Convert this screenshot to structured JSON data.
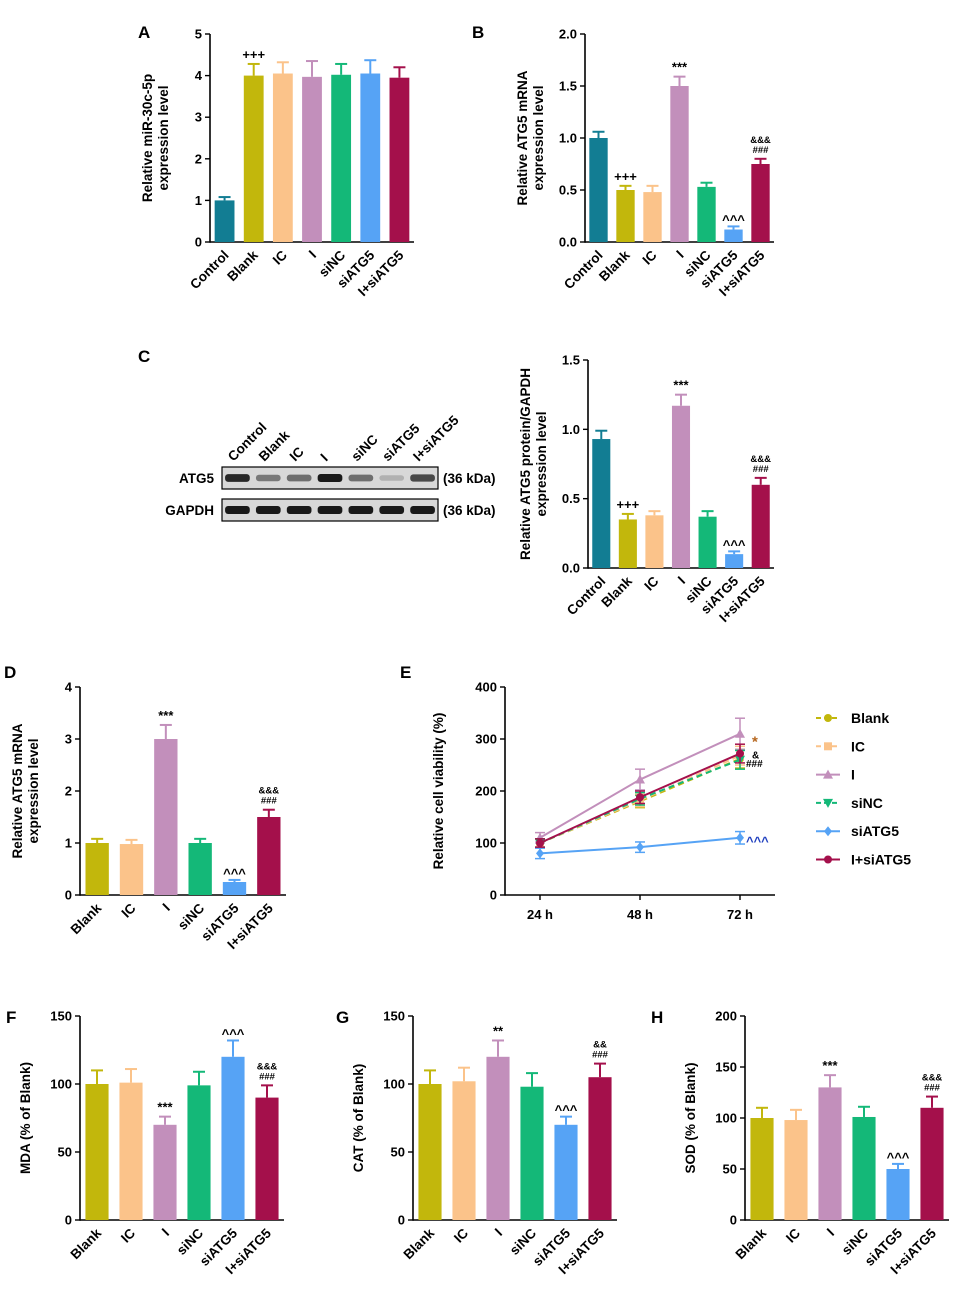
{
  "colors": {
    "Control": "#127d93",
    "Blank": "#c2b70c",
    "IC": "#fbc38a",
    "I": "#c28fbb",
    "siNC": "#14b878",
    "siATG5": "#56a3f5",
    "I+siATG5": "#a4104b"
  },
  "blot": {
    "lanes": [
      "Control",
      "Blank",
      "IC",
      "I",
      "siNC",
      "siATG5",
      "I+siATG5"
    ],
    "rows": [
      {
        "label": "ATG5",
        "size": "(36 kDa)"
      },
      {
        "label": "GAPDH",
        "size": "(36 kDa)"
      }
    ],
    "atg5_band_strength": [
      0.92,
      0.5,
      0.55,
      1.0,
      0.55,
      0.2,
      0.75
    ]
  },
  "chart_data": [
    {
      "panel": "A",
      "type": "bar",
      "ylabel": [
        "Relative miR-30c-5p",
        "expression level"
      ],
      "categories": [
        "Control",
        "Blank",
        "IC",
        "I",
        "siNC",
        "siATG5",
        "I+siATG5"
      ],
      "values": [
        1.0,
        4.0,
        4.05,
        3.97,
        4.02,
        4.05,
        3.95
      ],
      "errors": [
        0.08,
        0.28,
        0.27,
        0.38,
        0.26,
        0.32,
        0.25
      ],
      "ylim": [
        0,
        5
      ],
      "yticks": [
        "0",
        "1",
        "2",
        "3",
        "4",
        "5"
      ],
      "annotations": [
        {
          "index": 1,
          "lines": [
            "+++"
          ],
          "small": false
        }
      ]
    },
    {
      "panel": "B",
      "type": "bar",
      "ylabel": [
        "Relative ATG5 mRNA",
        "expression level"
      ],
      "categories": [
        "Control",
        "Blank",
        "IC",
        "I",
        "siNC",
        "siATG5",
        "I+siATG5"
      ],
      "values": [
        1.0,
        0.5,
        0.48,
        1.5,
        0.53,
        0.12,
        0.75
      ],
      "errors": [
        0.06,
        0.04,
        0.06,
        0.09,
        0.04,
        0.03,
        0.05
      ],
      "ylim": [
        0,
        2.0
      ],
      "yticks": [
        "0.0",
        "0.5",
        "1.0",
        "1.5",
        "2.0"
      ],
      "annotations": [
        {
          "index": 1,
          "lines": [
            "+++"
          ],
          "small": false
        },
        {
          "index": 3,
          "lines": [
            "***"
          ],
          "small": false
        },
        {
          "index": 5,
          "lines": [
            "^^^"
          ],
          "small": false
        },
        {
          "index": 6,
          "lines": [
            "&&&",
            "###"
          ],
          "small": true
        }
      ]
    },
    {
      "panel": "C",
      "type": "bar",
      "ylabel": [
        "Relative ATG5 protein/GAPDH",
        "expression level"
      ],
      "categories": [
        "Control",
        "Blank",
        "IC",
        "I",
        "siNC",
        "siATG5",
        "I+siATG5"
      ],
      "values": [
        0.93,
        0.35,
        0.38,
        1.17,
        0.37,
        0.1,
        0.6
      ],
      "errors": [
        0.06,
        0.04,
        0.03,
        0.08,
        0.04,
        0.02,
        0.05
      ],
      "ylim": [
        0,
        1.5
      ],
      "yticks": [
        "0.0",
        "0.5",
        "1.0",
        "1.5"
      ],
      "annotations": [
        {
          "index": 1,
          "lines": [
            "+++"
          ],
          "small": false
        },
        {
          "index": 3,
          "lines": [
            "***"
          ],
          "small": false
        },
        {
          "index": 5,
          "lines": [
            "^^^"
          ],
          "small": false
        },
        {
          "index": 6,
          "lines": [
            "&&&",
            "###"
          ],
          "small": true
        }
      ]
    },
    {
      "panel": "D",
      "type": "bar",
      "ylabel": [
        "Relative ATG5 mRNA",
        "expression level"
      ],
      "categories": [
        "Blank",
        "IC",
        "I",
        "siNC",
        "siATG5",
        "I+siATG5"
      ],
      "values": [
        1.0,
        0.98,
        3.0,
        1.0,
        0.25,
        1.5
      ],
      "errors": [
        0.08,
        0.08,
        0.27,
        0.08,
        0.04,
        0.14
      ],
      "ylim": [
        0,
        4
      ],
      "yticks": [
        "0",
        "1",
        "2",
        "3",
        "4"
      ],
      "annotations": [
        {
          "index": 2,
          "lines": [
            "***"
          ],
          "small": false
        },
        {
          "index": 4,
          "lines": [
            "^^^"
          ],
          "small": false
        },
        {
          "index": 5,
          "lines": [
            "&&&",
            "###"
          ],
          "small": true
        }
      ]
    },
    {
      "panel": "E",
      "type": "line",
      "ylabel": [
        "Relative cell viability (%)"
      ],
      "x": [
        "24 h",
        "48 h",
        "72 h"
      ],
      "ylim": [
        0,
        400
      ],
      "yticks": [
        "0",
        "100",
        "200",
        "300",
        "400"
      ],
      "series": [
        {
          "name": "Blank",
          "values": [
            100,
            180,
            262
          ],
          "errors": [
            8,
            12,
            18
          ],
          "dashed": true,
          "marker": "circle"
        },
        {
          "name": "IC",
          "values": [
            100,
            182,
            268
          ],
          "errors": [
            8,
            12,
            18
          ],
          "dashed": true,
          "marker": "square"
        },
        {
          "name": "I",
          "values": [
            110,
            222,
            310
          ],
          "errors": [
            10,
            20,
            30
          ],
          "dashed": false,
          "marker": "triangle"
        },
        {
          "name": "siNC",
          "values": [
            100,
            185,
            260
          ],
          "errors": [
            8,
            12,
            18
          ],
          "dashed": true,
          "marker": "triangle-down"
        },
        {
          "name": "siATG5",
          "values": [
            80,
            92,
            110
          ],
          "errors": [
            10,
            10,
            12
          ],
          "dashed": false,
          "marker": "diamond"
        },
        {
          "name": "I+siATG5",
          "values": [
            100,
            188,
            272
          ],
          "errors": [
            8,
            12,
            18
          ],
          "dashed": false,
          "marker": "circle"
        }
      ],
      "annotations": [
        {
          "text": "*",
          "color": "#b5651d",
          "at": 295
        },
        {
          "text": "&",
          "color": "#000000",
          "at": 272
        },
        {
          "text": "###",
          "color": "#000000",
          "at": 256
        },
        {
          "text": "^^^",
          "color": "#1f3fbf",
          "at": 110
        }
      ]
    },
    {
      "panel": "F",
      "type": "bar",
      "ylabel": [
        "MDA (% of Blank)"
      ],
      "categories": [
        "Blank",
        "IC",
        "I",
        "siNC",
        "siATG5",
        "I+siATG5"
      ],
      "values": [
        100,
        101,
        70,
        99,
        120,
        90
      ],
      "errors": [
        10,
        10,
        6,
        10,
        12,
        9
      ],
      "ylim": [
        0,
        150
      ],
      "yticks": [
        "0",
        "50",
        "100",
        "150"
      ],
      "annotations": [
        {
          "index": 2,
          "lines": [
            "***"
          ],
          "small": false
        },
        {
          "index": 4,
          "lines": [
            "^^^"
          ],
          "small": false
        },
        {
          "index": 5,
          "lines": [
            "&&&",
            "###"
          ],
          "small": true
        }
      ]
    },
    {
      "panel": "G",
      "type": "bar",
      "ylabel": [
        "CAT (% of Blank)"
      ],
      "categories": [
        "Blank",
        "IC",
        "I",
        "siNC",
        "siATG5",
        "I+siATG5"
      ],
      "values": [
        100,
        102,
        120,
        98,
        70,
        105
      ],
      "errors": [
        10,
        10,
        12,
        10,
        6,
        10
      ],
      "ylim": [
        0,
        150
      ],
      "yticks": [
        "0",
        "50",
        "100",
        "150"
      ],
      "annotations": [
        {
          "index": 2,
          "lines": [
            "**"
          ],
          "small": false
        },
        {
          "index": 4,
          "lines": [
            "^^^"
          ],
          "small": false
        },
        {
          "index": 5,
          "lines": [
            "&&",
            "###"
          ],
          "small": true
        }
      ]
    },
    {
      "panel": "H",
      "type": "bar",
      "ylabel": [
        "SOD (% of Blank)"
      ],
      "categories": [
        "Blank",
        "IC",
        "I",
        "siNC",
        "siATG5",
        "I+siATG5"
      ],
      "values": [
        100,
        98,
        130,
        101,
        50,
        110
      ],
      "errors": [
        10,
        10,
        12,
        10,
        5,
        11
      ],
      "ylim": [
        0,
        200
      ],
      "yticks": [
        "0",
        "50",
        "100",
        "150",
        "200"
      ],
      "annotations": [
        {
          "index": 2,
          "lines": [
            "***"
          ],
          "small": false
        },
        {
          "index": 4,
          "lines": [
            "^^^"
          ],
          "small": false
        },
        {
          "index": 5,
          "lines": [
            "&&&",
            "###"
          ],
          "small": true
        }
      ]
    }
  ]
}
